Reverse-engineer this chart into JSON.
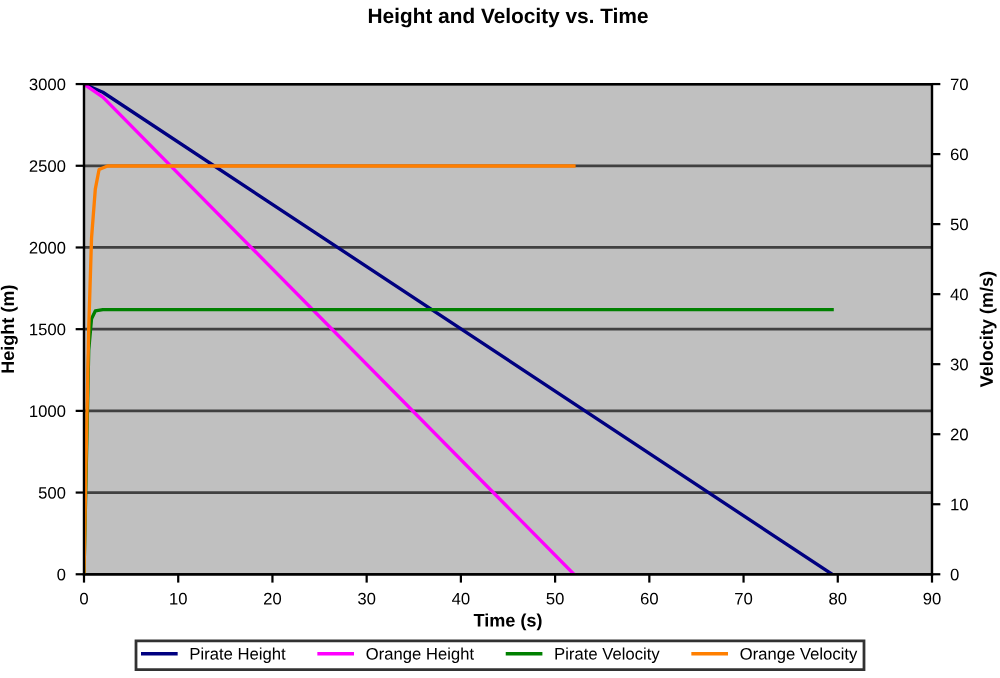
{
  "chart_data": {
    "type": "line",
    "title": "Height and Velocity vs. Time",
    "xlabel": "Time (s)",
    "ylabel": "Height (m)",
    "y2label": "Velocity (m/s)",
    "xlim": [
      0,
      90
    ],
    "xticks": [
      0,
      10,
      20,
      30,
      40,
      50,
      60,
      70,
      80,
      90
    ],
    "ylim": [
      0,
      3000
    ],
    "yticks": [
      0,
      500,
      1000,
      1500,
      2000,
      2500,
      3000
    ],
    "y2lim": [
      0,
      70
    ],
    "y2ticks": [
      0,
      10,
      20,
      30,
      40,
      50,
      60,
      70
    ],
    "grid": "y",
    "legend": "bottom",
    "marker": "none",
    "line_style": "solid",
    "series": [
      {
        "name": "Pirate Height",
        "color": "#000080",
        "x": [
          0,
          2,
          79.4
        ],
        "values": [
          3000,
          2950,
          0
        ]
      },
      {
        "name": "Orange Height",
        "color": "#ff00ff",
        "x": [
          0,
          2,
          52
        ],
        "values": [
          3000,
          2920,
          0
        ]
      },
      {
        "name": "Pirate Velocity",
        "color": "#008000",
        "axis": "y2",
        "x": [
          0,
          0.5,
          0.8,
          1.2,
          2,
          79.4
        ],
        "values": [
          0,
          32,
          36.5,
          37.6,
          37.8,
          37.8
        ]
      },
      {
        "name": "Orange Velocity",
        "color": "#ff7f00",
        "axis": "y2",
        "x": [
          0,
          0.2,
          0.5,
          0.8,
          1.2,
          1.6,
          2.5,
          52
        ],
        "values": [
          0,
          15,
          35,
          48,
          55,
          57.8,
          58.3,
          58.3
        ]
      }
    ]
  }
}
